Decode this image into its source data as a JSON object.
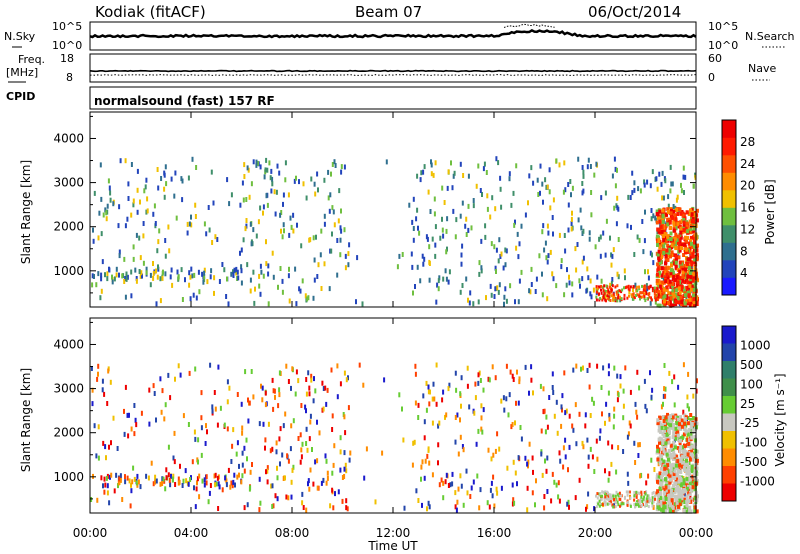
{
  "header": {
    "station": "Kodiak (fitACF)",
    "beam": "Beam 07",
    "date": "06/Oct/2014"
  },
  "top_panels": {
    "nsky_label": "N.Sky",
    "nsearch_label": "N.Search",
    "noise_ticks": [
      "10^5",
      "10^0"
    ],
    "freq_label": "Freq.",
    "freq_unit": "[MHz]",
    "freq_ticks": [
      "18",
      "8"
    ],
    "nave_label": "Nave",
    "nave_ticks": [
      "60",
      "0"
    ],
    "cpid_label": "CPID",
    "cpid_text": "normalsound (fast) 157 RF"
  },
  "colors": {
    "power_scale": [
      "#1a1aff",
      "#2244bb",
      "#2f6f8f",
      "#3f8f6a",
      "#6fbf3f",
      "#f0c000",
      "#ff8c00",
      "#ff5000",
      "#ff1a00",
      "#ee0000"
    ],
    "velocity_scale": [
      "#1a1acc",
      "#2244aa",
      "#2f7f6a",
      "#3f8f4a",
      "#66cc33",
      "#c8c8c0",
      "#f0c000",
      "#ff8c00",
      "#ff4000",
      "#ee0000"
    ]
  },
  "chart_data": [
    {
      "type": "heatmap",
      "name": "power",
      "ylabel": "Slant Range [km]",
      "yticks": [
        "1000",
        "2000",
        "3000",
        "4000"
      ],
      "ylim": [
        180,
        4600
      ],
      "xlim": [
        0,
        24
      ],
      "colorbar_label": "Power [dB]",
      "colorbar_ticks": [
        "4",
        "8",
        "12",
        "16",
        "20",
        "24",
        "28"
      ],
      "colorbar_range": [
        0,
        32
      ]
    },
    {
      "type": "heatmap",
      "name": "velocity",
      "ylabel": "Slant Range [km]",
      "yticks": [
        "1000",
        "2000",
        "3000",
        "4000"
      ],
      "ylim": [
        180,
        4600
      ],
      "xlim": [
        0,
        24
      ],
      "colorbar_label": "Velocity [m s⁻¹]",
      "colorbar_ticks": [
        "1000",
        "500",
        "100",
        "25",
        "-25",
        "-100",
        "-500",
        "-1000"
      ]
    }
  ],
  "xaxis": {
    "ticks": [
      "00:00",
      "04:00",
      "08:00",
      "12:00",
      "16:00",
      "20:00",
      "00:00"
    ],
    "label": "Time UT"
  }
}
